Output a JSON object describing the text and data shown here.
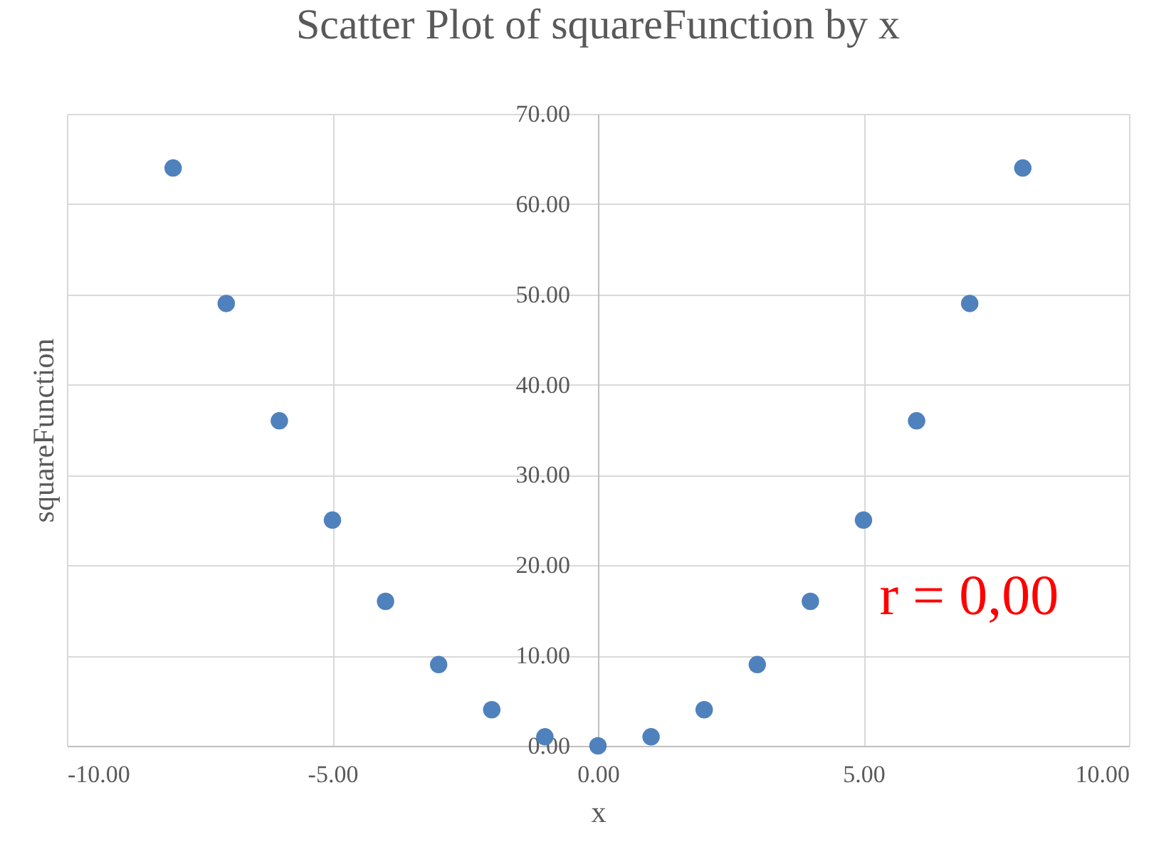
{
  "chart_data": {
    "type": "scatter",
    "title": "Scatter Plot of squareFunction by x",
    "xlabel": "x",
    "ylabel": "squareFunction",
    "x": [
      -8,
      -7,
      -6,
      -5,
      -4,
      -3,
      -2,
      -1,
      0,
      1,
      2,
      3,
      4,
      5,
      6,
      7,
      8
    ],
    "series": [
      {
        "color": "#4f81bd",
        "values": [
          64,
          49,
          36,
          25,
          16,
          9,
          4,
          1,
          0,
          1,
          4,
          9,
          16,
          25,
          36,
          49,
          64
        ]
      }
    ],
    "xlim": [
      -10,
      10
    ],
    "xticks": [
      {
        "value": -10,
        "label": "-10.00"
      },
      {
        "value": -5,
        "label": "-5.00"
      },
      {
        "value": 0,
        "label": "0.00"
      },
      {
        "value": 5,
        "label": "5.00"
      },
      {
        "value": 10,
        "label": "10.00"
      }
    ],
    "ylim": [
      0,
      70
    ],
    "yticks": [
      {
        "value": 0,
        "label": "0.00"
      },
      {
        "value": 10,
        "label": "10.00"
      },
      {
        "value": 20,
        "label": "20.00"
      },
      {
        "value": 30,
        "label": "30.00"
      },
      {
        "value": 40,
        "label": "40.00"
      },
      {
        "value": 50,
        "label": "50.00"
      },
      {
        "value": 60,
        "label": "60.00"
      },
      {
        "value": 70,
        "label": "70.00"
      }
    ],
    "annotations": [
      "r = 0,00"
    ],
    "grid": true,
    "marker": "circle"
  }
}
